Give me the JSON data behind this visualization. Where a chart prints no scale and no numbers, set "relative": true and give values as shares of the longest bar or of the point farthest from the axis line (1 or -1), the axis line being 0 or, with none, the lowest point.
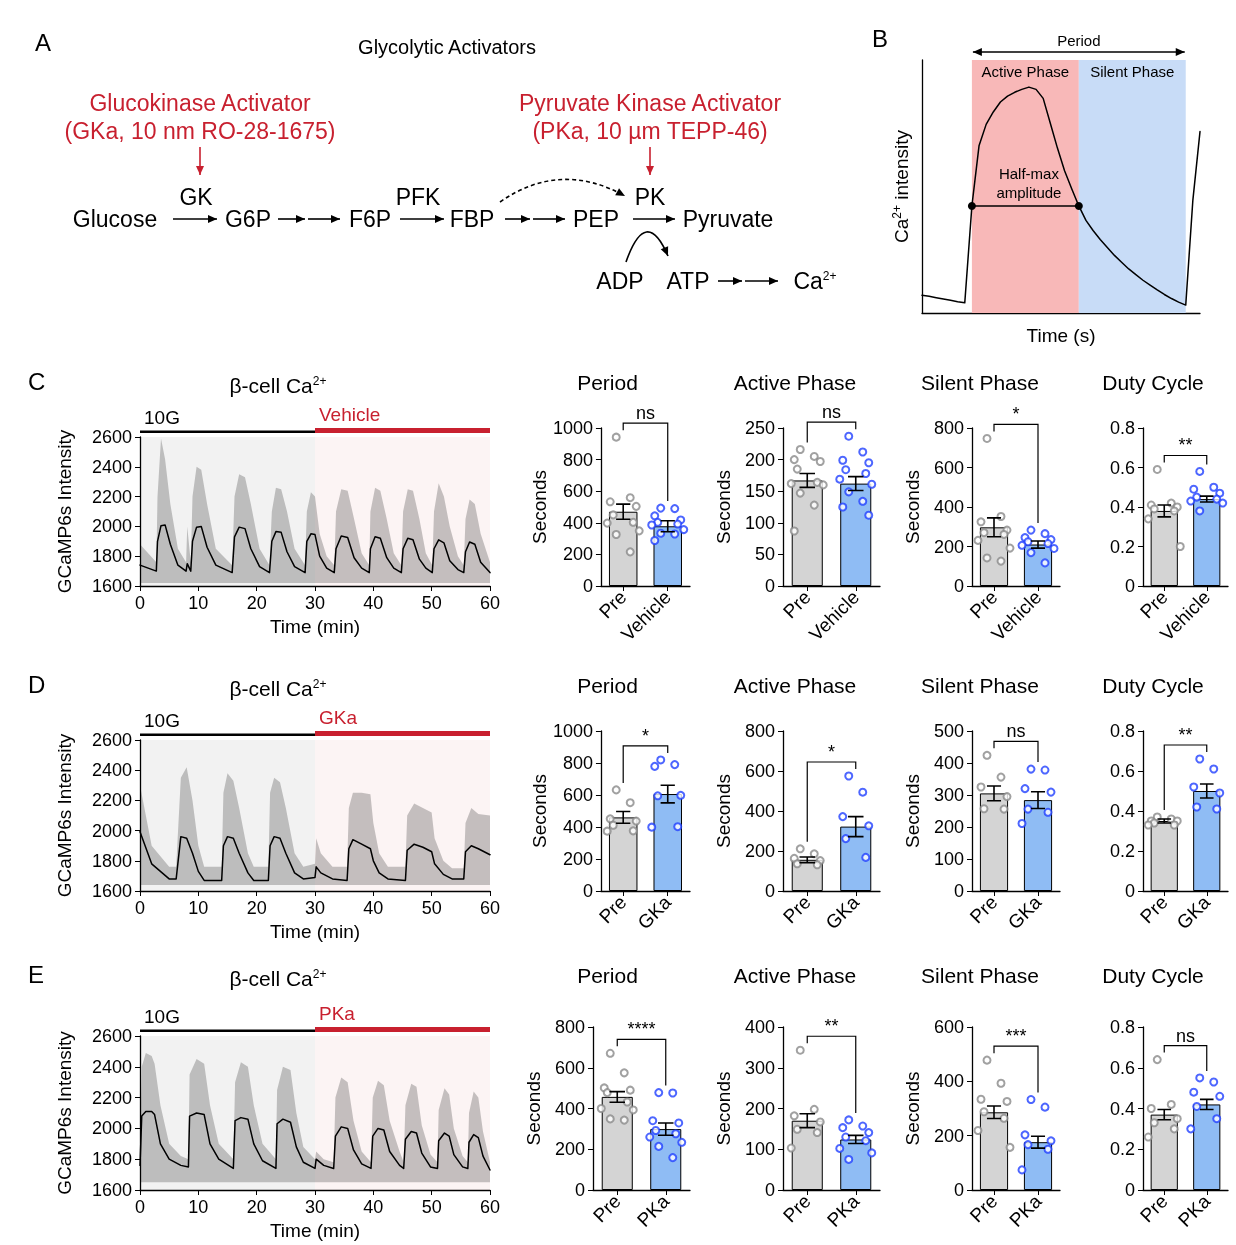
{
  "chart_data": [
    {
      "type": "other",
      "title": "Glycolytic Activators",
      "annotations": [
        "A",
        "Glucokinase Activator",
        "(GKa, 10 nm RO-28-1675)",
        "Pyruvate Kinase Activator",
        "(PKa, 10 µm TEPP-46)",
        "GK",
        "Glucose",
        "G6P",
        "F6P",
        "PFK",
        "FBP",
        "PEP",
        "PK",
        "Pyruvate",
        "ADP",
        "ATP",
        "Ca$^{2+}$"
      ]
    },
    {
      "type": "line",
      "relative": true,
      "xlabel": "Time (s)",
      "ylabel": "Ca$^{2+}$ intensity",
      "annotations": [
        "B",
        "Period",
        "Active Phase",
        "Silent Phase"
      ],
      "ref_lines": [
        {
          "axis": "y",
          "value": 0.474,
          "label": "Half-max\namplitude",
          "color": "#000000"
        }
      ],
      "categories": [
        null,
        null,
        null,
        null,
        null,
        null,
        null,
        null,
        null,
        null,
        null,
        null,
        null,
        null,
        null,
        null,
        null,
        null,
        null,
        null,
        null,
        null,
        null,
        null,
        null,
        null,
        null,
        null,
        null,
        null,
        null,
        null,
        null,
        null,
        null,
        null,
        null,
        null,
        null,
        null
      ],
      "series": [
        {
          "color": "#000000",
          "marker": "none",
          "values": [
            0.079,
            0.074,
            0.068,
            0.062,
            0.056,
            0.05,
            0.045,
            0.474,
            0.74,
            0.835,
            0.89,
            0.934,
            0.96,
            0.977,
            0.99,
            1,
            0.99,
            0.95,
            0.84,
            0.73,
            0.63,
            0.55,
            0.474,
            0.41,
            0.365,
            0.325,
            0.29,
            0.255,
            0.225,
            0.195,
            0.17,
            0.145,
            0.123,
            0.102,
            0.082,
            0.064,
            0.048,
            0.035,
            0.5,
            0.803
          ]
        }
      ]
    },
    {
      "type": "line",
      "title": "β-cell Ca$^{2+}$",
      "xlabel": "Time (min)",
      "ylabel": "GCaMP6s Intensity",
      "xlim": [
        0,
        60
      ],
      "xticks": [
        0,
        10,
        20,
        30,
        40,
        50,
        60
      ],
      "ylim": [
        1600,
        2600
      ],
      "yticks": [
        1600,
        1800,
        2000,
        2200,
        2400,
        2600
      ],
      "annotations": [
        "C"
      ],
      "bands": [
        {
          "axis": "x",
          "from": 0,
          "to": 30,
          "label": "10G",
          "color": "#000000"
        },
        {
          "axis": "x",
          "from": 30,
          "to": 60,
          "label": "Vehicle",
          "color": "#c8202f"
        }
      ],
      "series": [
        {
          "color": "#000000",
          "x": [
            0,
            2.8,
            3.0,
            3.6,
            4.3,
            5.2,
            6.5,
            7.9,
            8.1,
            8.7,
            9.0,
            9.7,
            10.5,
            11.5,
            13,
            15.8,
            16.2,
            17,
            18,
            19,
            20.5,
            22.2,
            22.6,
            23.3,
            24.2,
            25.2,
            26.5,
            28.3,
            28.6,
            29.3,
            30,
            30.8,
            32,
            33.3,
            33.6,
            34.5,
            35.6,
            36.7,
            38,
            39.3,
            39.5,
            40.3,
            41.2,
            42.3,
            43.5,
            44.8,
            45.1,
            45.9,
            46.8,
            47.9,
            49,
            50.1,
            50.4,
            51.2,
            52.1,
            53.1,
            54.5,
            55.5,
            55.8,
            56.5,
            57.4,
            58.4,
            60
          ],
          "values": [
            1740,
            1700,
            1900,
            2005,
            2010,
            1880,
            1740,
            1700,
            1750,
            1700,
            1900,
            1995,
            2000,
            1860,
            1740,
            1690,
            1930,
            1995,
            1985,
            1850,
            1730,
            1690,
            1900,
            1965,
            1960,
            1830,
            1730,
            1690,
            1900,
            1950,
            1945,
            1800,
            1720,
            1690,
            1850,
            1935,
            1925,
            1790,
            1720,
            1690,
            1850,
            1930,
            1920,
            1790,
            1720,
            1690,
            1850,
            1920,
            1910,
            1780,
            1720,
            1690,
            1850,
            1910,
            1890,
            1770,
            1710,
            1690,
            1830,
            1895,
            1880,
            1760,
            1690
          ],
          "upper": [
            1880,
            1760,
            2200,
            2590,
            2450,
            2150,
            1850,
            1760,
            2000,
            1760,
            2200,
            2400,
            2380,
            2150,
            1850,
            1740,
            2200,
            2350,
            2330,
            2150,
            1850,
            1740,
            2100,
            2260,
            2250,
            2100,
            1850,
            1740,
            2100,
            2230,
            2200,
            1950,
            1800,
            1740,
            2100,
            2250,
            2240,
            2050,
            1820,
            1740,
            2100,
            2260,
            2240,
            2050,
            1820,
            1740,
            2100,
            2250,
            2240,
            2050,
            1820,
            1740,
            2100,
            2290,
            2200,
            2000,
            1800,
            1740,
            2050,
            2180,
            2150,
            1950,
            1760
          ],
          "lower": [
            1620,
            1620,
            1620,
            1620,
            1620,
            1620,
            1620,
            1620,
            1620,
            1620,
            1620,
            1620,
            1620,
            1620,
            1620,
            1620,
            1620,
            1620,
            1620,
            1620,
            1620,
            1620,
            1620,
            1620,
            1620,
            1620,
            1620,
            1620,
            1620,
            1620,
            1620,
            1620,
            1620,
            1620,
            1620,
            1620,
            1620,
            1620,
            1620,
            1620,
            1620,
            1620,
            1620,
            1620,
            1620,
            1620,
            1620,
            1620,
            1620,
            1620,
            1620,
            1620,
            1620,
            1620,
            1620,
            1620,
            1620,
            1620,
            1620,
            1620,
            1620,
            1620,
            1620
          ]
        }
      ]
    },
    {
      "type": "bar",
      "title": "Period",
      "ylabel": "Seconds",
      "categories": [
        "Pre",
        "Vehicle"
      ],
      "ylim": [
        0,
        1000
      ],
      "yticks": [
        0,
        200,
        400,
        600,
        800,
        1000
      ],
      "marker": "circle",
      "annotations": [
        "ns"
      ],
      "series": [
        {
          "type": "bar",
          "values": [
            470,
            378
          ],
          "colors": [
            "#d4d4d4",
            "#8fbcf4"
          ],
          "errors": [
            48,
            35
          ]
        },
        {
          "type": "scatter",
          "color": "#8a8a8a",
          "x": [
            "Pre",
            "Pre",
            "Pre",
            "Pre",
            "Pre",
            "Pre",
            "Pre",
            "Pre",
            "Pre",
            "Pre"
          ],
          "values": [
            942,
            559,
            533,
            504,
            450,
            403,
            398,
            349,
            326,
            216
          ]
        },
        {
          "type": "scatter",
          "color": "#2040ff",
          "x": [
            "Vehicle",
            "Vehicle",
            "Vehicle",
            "Vehicle",
            "Vehicle",
            "Vehicle",
            "Vehicle",
            "Vehicle",
            "Vehicle",
            "Vehicle",
            "Vehicle"
          ],
          "values": [
            493,
            490,
            444,
            418,
            403,
            392,
            386,
            357,
            334,
            329,
            288
          ]
        }
      ]
    },
    {
      "type": "bar",
      "title": "Active Phase",
      "ylabel": "Seconds",
      "categories": [
        "Pre",
        "Vehicle"
      ],
      "ylim": [
        0,
        250
      ],
      "yticks": [
        0,
        50,
        100,
        150,
        200,
        250
      ],
      "marker": "circle",
      "annotations": [
        "ns"
      ],
      "series": [
        {
          "type": "bar",
          "values": [
            167,
            162
          ],
          "colors": [
            "#d4d4d4",
            "#8fbcf4"
          ],
          "errors": [
            11,
            11
          ]
        },
        {
          "type": "scatter",
          "color": "#8a8a8a",
          "x": [
            "Pre",
            "Pre",
            "Pre",
            "Pre",
            "Pre",
            "Pre",
            "Pre",
            "Pre",
            "Pre",
            "Pre",
            "Pre"
          ],
          "values": [
            216,
            205,
            200,
            197,
            185,
            164,
            162,
            160,
            147,
            128,
            87
          ]
        },
        {
          "type": "scatter",
          "color": "#2040ff",
          "x": [
            "Vehicle",
            "Vehicle",
            "Vehicle",
            "Vehicle",
            "Vehicle",
            "Vehicle",
            "Vehicle",
            "Vehicle",
            "Vehicle",
            "Vehicle",
            "Vehicle",
            "Vehicle"
          ],
          "values": [
            237,
            212,
            199,
            195,
            184,
            178,
            169,
            161,
            149,
            134,
            125,
            112
          ]
        }
      ]
    },
    {
      "type": "bar",
      "title": "Silent Phase",
      "ylabel": "Seconds",
      "categories": [
        "Pre",
        "Vehicle"
      ],
      "ylim": [
        0,
        800
      ],
      "yticks": [
        0,
        200,
        400,
        600,
        800
      ],
      "marker": "circle",
      "annotations": [
        "*"
      ],
      "series": [
        {
          "type": "bar",
          "values": [
            297,
            210
          ],
          "colors": [
            "#d4d4d4",
            "#8fbcf4"
          ],
          "errors": [
            48,
            18
          ]
        },
        {
          "type": "scatter",
          "color": "#8a8a8a",
          "x": [
            "Pre",
            "Pre",
            "Pre",
            "Pre",
            "Pre",
            "Pre",
            "Pre",
            "Pre",
            "Pre",
            "Pre"
          ],
          "values": [
            747,
            352,
            325,
            283,
            270,
            261,
            231,
            192,
            142,
            126
          ]
        },
        {
          "type": "scatter",
          "color": "#2040ff",
          "x": [
            "Vehicle",
            "Vehicle",
            "Vehicle",
            "Vehicle",
            "Vehicle",
            "Vehicle",
            "Vehicle",
            "Vehicle",
            "Vehicle",
            "Vehicle"
          ],
          "values": [
            283,
            265,
            245,
            235,
            224,
            215,
            206,
            190,
            169,
            117
          ]
        }
      ]
    },
    {
      "type": "bar",
      "title": "Duty Cycle",
      "categories": [
        "Pre",
        "Vehicle"
      ],
      "ylim": [
        0,
        0.8
      ],
      "yticks": [
        0,
        0.2,
        0.4,
        0.6,
        0.8
      ],
      "marker": "circle",
      "annotations": [
        "**"
      ],
      "series": [
        {
          "type": "bar",
          "values": [
            0.38,
            0.44
          ],
          "colors": [
            "#d4d4d4",
            "#8fbcf4"
          ],
          "errors": [
            0.03,
            0.015
          ]
        },
        {
          "type": "scatter",
          "color": "#8a8a8a",
          "x": [
            "Pre",
            "Pre",
            "Pre",
            "Pre",
            "Pre",
            "Pre",
            "Pre",
            "Pre"
          ],
          "values": [
            0.59,
            0.42,
            0.41,
            0.4,
            0.39,
            0.38,
            0.34,
            0.2
          ]
        },
        {
          "type": "scatter",
          "color": "#2040ff",
          "x": [
            "Vehicle",
            "Vehicle",
            "Vehicle",
            "Vehicle",
            "Vehicle",
            "Vehicle",
            "Vehicle",
            "Vehicle",
            "Vehicle"
          ],
          "values": [
            0.58,
            0.5,
            0.49,
            0.47,
            0.45,
            0.44,
            0.43,
            0.42,
            0.38
          ]
        }
      ]
    },
    {
      "type": "line",
      "title": "β-cell Ca$^{2+}$",
      "xlabel": "Time (min)",
      "ylabel": "GCaMP6s Intensity",
      "xlim": [
        0,
        60
      ],
      "xticks": [
        0,
        10,
        20,
        30,
        40,
        50,
        60
      ],
      "ylim": [
        1600,
        2600
      ],
      "yticks": [
        1600,
        1800,
        2000,
        2200,
        2400,
        2600
      ],
      "annotations": [
        "D"
      ],
      "bands": [
        {
          "axis": "x",
          "from": 0,
          "to": 30,
          "label": "10G",
          "color": "#000000"
        },
        {
          "axis": "x",
          "from": 30,
          "to": 60,
          "label": "GKa",
          "color": "#c8202f"
        }
      ],
      "series": [
        {
          "color": "#000000",
          "x": [
            0,
            2,
            5,
            6.2,
            7,
            8,
            9,
            10,
            11,
            14,
            14.3,
            15,
            16,
            17,
            18.5,
            19.5,
            22,
            22.3,
            23,
            24,
            25,
            26.5,
            28,
            30,
            30.2,
            31,
            33,
            35.5,
            35.8,
            36.5,
            38,
            39.5,
            40,
            41,
            42.5,
            45.5,
            45.8,
            47,
            48.5,
            50,
            50.5,
            52,
            53.5,
            55.5,
            55.8,
            56.8,
            58,
            60
          ],
          "values": [
            1993,
            1780,
            1680,
            1680,
            1960,
            1950,
            1850,
            1730,
            1670,
            1670,
            1900,
            1960,
            1950,
            1850,
            1720,
            1670,
            1670,
            1900,
            1960,
            1950,
            1850,
            1720,
            1680,
            1690,
            1760,
            1720,
            1680,
            1670,
            1880,
            1940,
            1910,
            1880,
            1800,
            1720,
            1680,
            1670,
            1870,
            1910,
            1890,
            1860,
            1780,
            1710,
            1680,
            1680,
            1860,
            1900,
            1880,
            1840
          ],
          "upper": [
            2300,
            1900,
            1760,
            1760,
            2350,
            2420,
            2200,
            1900,
            1760,
            1760,
            2250,
            2380,
            2330,
            2150,
            1850,
            1760,
            1760,
            2250,
            2350,
            2320,
            2150,
            1850,
            1760,
            1780,
            1950,
            1850,
            1760,
            1760,
            2150,
            2250,
            2250,
            2240,
            2050,
            1850,
            1760,
            1760,
            2100,
            2180,
            2150,
            2120,
            1950,
            1800,
            1750,
            1750,
            2050,
            2150,
            2110,
            2100
          ],
          "lower": [
            1640,
            1640,
            1640,
            1640,
            1640,
            1640,
            1640,
            1640,
            1640,
            1640,
            1640,
            1640,
            1640,
            1640,
            1640,
            1640,
            1640,
            1640,
            1640,
            1640,
            1640,
            1640,
            1640,
            1640,
            1640,
            1640,
            1640,
            1640,
            1640,
            1640,
            1640,
            1640,
            1640,
            1640,
            1640,
            1640,
            1640,
            1640,
            1640,
            1640,
            1640,
            1640,
            1640,
            1640,
            1640,
            1640,
            1640,
            1640
          ]
        }
      ]
    },
    {
      "type": "bar",
      "title": "Period",
      "ylabel": "Seconds",
      "categories": [
        "Pre",
        "GKa"
      ],
      "ylim": [
        0,
        1000
      ],
      "yticks": [
        0,
        200,
        400,
        600,
        800,
        1000
      ],
      "marker": "circle",
      "annotations": [
        "*"
      ],
      "series": [
        {
          "type": "bar",
          "values": [
            460,
            606
          ],
          "colors": [
            "#d4d4d4",
            "#8fbcf4"
          ],
          "errors": [
            37,
            55
          ]
        },
        {
          "type": "scatter",
          "color": "#8a8a8a",
          "x": [
            "Pre",
            "Pre",
            "Pre",
            "Pre",
            "Pre",
            "Pre",
            "Pre"
          ],
          "values": [
            632,
            552,
            451,
            437,
            411,
            376,
            374
          ]
        },
        {
          "type": "scatter",
          "color": "#2040ff",
          "x": [
            "GKa",
            "GKa",
            "GKa",
            "GKa",
            "GKa",
            "GKa",
            "GKa"
          ],
          "values": [
            819,
            790,
            779,
            598,
            595,
            402,
            399
          ]
        }
      ]
    },
    {
      "type": "bar",
      "title": "Active Phase",
      "ylabel": "Seconds",
      "categories": [
        "Pre",
        "GKa"
      ],
      "ylim": [
        0,
        800
      ],
      "yticks": [
        0,
        200,
        400,
        600,
        800
      ],
      "marker": "circle",
      "annotations": [
        "*"
      ],
      "series": [
        {
          "type": "bar",
          "values": [
            156,
            322
          ],
          "colors": [
            "#d4d4d4",
            "#8fbcf4"
          ],
          "errors": [
            14,
            50
          ]
        },
        {
          "type": "scatter",
          "color": "#8a8a8a",
          "x": [
            "Pre",
            "Pre",
            "Pre",
            "Pre",
            "Pre",
            "Pre"
          ],
          "values": [
            211,
            186,
            163,
            152,
            136,
            131
          ]
        },
        {
          "type": "scatter",
          "color": "#2040ff",
          "x": [
            "GKa",
            "GKa",
            "GKa",
            "GKa",
            "GKa",
            "GKa"
          ],
          "values": [
            575,
            494,
            372,
            326,
            262,
            168
          ]
        }
      ]
    },
    {
      "type": "bar",
      "title": "Silent Phase",
      "ylabel": "Seconds",
      "categories": [
        "Pre",
        "GKa"
      ],
      "ylim": [
        0,
        500
      ],
      "yticks": [
        0,
        100,
        200,
        300,
        400,
        500
      ],
      "marker": "circle",
      "annotations": [
        "ns"
      ],
      "series": [
        {
          "type": "bar",
          "values": [
            305,
            284
          ],
          "colors": [
            "#d4d4d4",
            "#8fbcf4"
          ],
          "errors": [
            23,
            26
          ]
        },
        {
          "type": "scatter",
          "color": "#8a8a8a",
          "x": [
            "Pre",
            "Pre",
            "Pre",
            "Pre",
            "Pre",
            "Pre"
          ],
          "values": [
            424,
            356,
            325,
            295,
            257,
            256
          ]
        },
        {
          "type": "scatter",
          "color": "#2040ff",
          "x": [
            "GKa",
            "GKa",
            "GKa",
            "GKa",
            "GKa",
            "GKa",
            "GKa"
          ],
          "values": [
            381,
            378,
            320,
            309,
            256,
            246,
            211
          ]
        }
      ]
    },
    {
      "type": "bar",
      "title": "Duty Cycle",
      "categories": [
        "Pre",
        "GKa"
      ],
      "ylim": [
        0,
        0.8
      ],
      "yticks": [
        0,
        0.2,
        0.4,
        0.6,
        0.8
      ],
      "marker": "circle",
      "annotations": [
        "**"
      ],
      "series": [
        {
          "type": "bar",
          "values": [
            0.35,
            0.5
          ],
          "colors": [
            "#d4d4d4",
            "#8fbcf4"
          ],
          "errors": [
            0.01,
            0.035
          ]
        },
        {
          "type": "scatter",
          "color": "#8a8a8a",
          "x": [
            "Pre",
            "Pre",
            "Pre",
            "Pre",
            "Pre",
            "Pre",
            "Pre"
          ],
          "values": [
            0.37,
            0.36,
            0.35,
            0.35,
            0.34,
            0.33,
            0.33
          ]
        },
        {
          "type": "scatter",
          "color": "#2040ff",
          "x": [
            "GKa",
            "GKa",
            "GKa",
            "GKa",
            "GKa",
            "GKa"
          ],
          "values": [
            0.66,
            0.61,
            0.52,
            0.49,
            0.42,
            0.41
          ]
        }
      ]
    },
    {
      "type": "line",
      "title": "β-cell Ca$^{2+}$",
      "xlabel": "Time (min)",
      "ylabel": "GCaMP6s Intensity",
      "xlim": [
        0,
        60
      ],
      "xticks": [
        0,
        10,
        20,
        30,
        40,
        50,
        60
      ],
      "ylim": [
        1600,
        2600
      ],
      "yticks": [
        1600,
        1800,
        2000,
        2200,
        2400,
        2600
      ],
      "annotations": [
        "E"
      ],
      "bands": [
        {
          "axis": "x",
          "from": 0,
          "to": 30,
          "label": "10G",
          "color": "#000000"
        },
        {
          "axis": "x",
          "from": 30,
          "to": 60,
          "label": "PKa",
          "color": "#c8202f"
        }
      ],
      "series": [
        {
          "color": "#000000",
          "x": [
            0,
            0.3,
            1,
            2,
            2.5,
            3.5,
            5,
            7,
            8.3,
            8.5,
            9.7,
            11,
            12,
            13.5,
            16,
            16.3,
            17.3,
            18.5,
            19.5,
            21,
            23.3,
            23.5,
            24.5,
            25.8,
            26.8,
            28,
            30,
            30.2,
            31.5,
            33.2,
            33.5,
            34.5,
            35.6,
            36.6,
            38,
            39.6,
            39.9,
            40.8,
            41.8,
            42.8,
            44.5,
            45.2,
            45.5,
            46.5,
            47.4,
            48.3,
            49.8,
            51,
            51.2,
            52.2,
            53,
            53.8,
            55.3,
            56.2,
            56.4,
            57.2,
            58,
            58.8,
            60
          ],
          "values": [
            1760,
            2080,
            2110,
            2110,
            2090,
            1900,
            1800,
            1760,
            1750,
            2080,
            2100,
            2090,
            1900,
            1800,
            1740,
            2050,
            2070,
            2060,
            1900,
            1790,
            1740,
            2030,
            2060,
            2040,
            1880,
            1780,
            1740,
            1800,
            1760,
            1740,
            1950,
            2010,
            2000,
            1860,
            1770,
            1740,
            1950,
            2000,
            1990,
            1850,
            1760,
            1740,
            1930,
            1980,
            1970,
            1840,
            1750,
            1740,
            1920,
            1970,
            1950,
            1830,
            1750,
            1740,
            1910,
            1960,
            1940,
            1820,
            1730
          ],
          "upper": [
            1850,
            2400,
            2490,
            2470,
            2420,
            2150,
            1900,
            1820,
            1800,
            2350,
            2450,
            2420,
            2150,
            1900,
            1800,
            2300,
            2430,
            2400,
            2150,
            1900,
            1800,
            2250,
            2400,
            2380,
            2100,
            1880,
            1800,
            1850,
            1800,
            1780,
            2200,
            2330,
            2300,
            2050,
            1850,
            1780,
            2200,
            2310,
            2280,
            2050,
            1850,
            1780,
            2150,
            2290,
            2270,
            2020,
            1830,
            1780,
            2120,
            2260,
            2220,
            2000,
            1820,
            1780,
            2100,
            2240,
            2200,
            1980,
            1780
          ],
          "lower": [
            1650,
            1650,
            1650,
            1650,
            1650,
            1650,
            1650,
            1650,
            1650,
            1650,
            1650,
            1650,
            1650,
            1650,
            1650,
            1650,
            1650,
            1650,
            1650,
            1650,
            1650,
            1650,
            1650,
            1650,
            1650,
            1650,
            1650,
            1650,
            1650,
            1650,
            1650,
            1650,
            1650,
            1650,
            1650,
            1650,
            1650,
            1650,
            1650,
            1650,
            1650,
            1650,
            1650,
            1650,
            1650,
            1650,
            1650,
            1650,
            1650,
            1650,
            1650,
            1650,
            1650,
            1650,
            1650,
            1650,
            1650,
            1650,
            1650
          ]
        }
      ]
    },
    {
      "type": "bar",
      "title": "Period",
      "ylabel": "Seconds",
      "categories": [
        "Pre",
        "PKa"
      ],
      "ylim": [
        0,
        800
      ],
      "yticks": [
        0,
        200,
        400,
        600,
        800
      ],
      "marker": "circle",
      "annotations": [
        "****"
      ],
      "series": [
        {
          "type": "bar",
          "values": [
            457,
            299
          ],
          "colors": [
            "#d4d4d4",
            "#8fbcf4"
          ],
          "errors": [
            26,
            30
          ]
        },
        {
          "type": "scatter",
          "color": "#8a8a8a",
          "x": [
            "Pre",
            "Pre",
            "Pre",
            "Pre",
            "Pre",
            "Pre",
            "Pre",
            "Pre",
            "Pre",
            "Pre"
          ],
          "values": [
            671,
            575,
            501,
            490,
            478,
            432,
            400,
            393,
            349,
            343
          ]
        },
        {
          "type": "scatter",
          "color": "#2040ff",
          "x": [
            "PKa",
            "PKa",
            "PKa",
            "PKa",
            "PKa",
            "PKa",
            "PKa",
            "PKa",
            "PKa",
            "PKa"
          ],
          "values": [
            478,
            476,
            340,
            329,
            292,
            276,
            260,
            234,
            214,
            159
          ]
        }
      ]
    },
    {
      "type": "bar",
      "title": "Active Phase",
      "ylabel": "Seconds",
      "categories": [
        "Pre",
        "PKa"
      ],
      "ylim": [
        0,
        400
      ],
      "yticks": [
        0,
        100,
        200,
        300,
        400
      ],
      "marker": "circle",
      "annotations": [
        "**"
      ],
      "series": [
        {
          "type": "bar",
          "values": [
            170,
            124
          ],
          "colors": [
            "#d4d4d4",
            "#8fbcf4"
          ],
          "errors": [
            17,
            10
          ]
        },
        {
          "type": "scatter",
          "color": "#8a8a8a",
          "x": [
            "Pre",
            "Pre",
            "Pre",
            "Pre",
            "Pre",
            "Pre",
            "Pre"
          ],
          "values": [
            343,
            198,
            182,
            167,
            149,
            141,
            103
          ]
        },
        {
          "type": "scatter",
          "color": "#2040ff",
          "x": [
            "PKa",
            "PKa",
            "PKa",
            "PKa",
            "PKa",
            "PKa",
            "PKa",
            "PKa",
            "PKa"
          ],
          "values": [
            172,
            157,
            153,
            141,
            130,
            121,
            102,
            91,
            75
          ]
        }
      ]
    },
    {
      "type": "bar",
      "title": "Silent Phase",
      "ylabel": "Seconds",
      "categories": [
        "Pre",
        "PKa"
      ],
      "ylim": [
        0,
        600
      ],
      "yticks": [
        0,
        200,
        400,
        600
      ],
      "marker": "circle",
      "annotations": [
        "***"
      ],
      "series": [
        {
          "type": "bar",
          "values": [
            286,
            176
          ],
          "colors": [
            "#d4d4d4",
            "#8fbcf4"
          ],
          "errors": [
            23,
            22
          ]
        },
        {
          "type": "scatter",
          "color": "#8a8a8a",
          "x": [
            "Pre",
            "Pre",
            "Pre",
            "Pre",
            "Pre",
            "Pre",
            "Pre",
            "Pre"
          ],
          "values": [
            478,
            393,
            334,
            326,
            288,
            264,
            219,
            157
          ]
        },
        {
          "type": "scatter",
          "color": "#2040ff",
          "x": [
            "PKa",
            "PKa",
            "PKa",
            "PKa",
            "PKa",
            "PKa",
            "PKa"
          ],
          "values": [
            333,
            305,
            203,
            181,
            167,
            150,
            74
          ]
        }
      ]
    },
    {
      "type": "bar",
      "title": "Duty Cycle",
      "categories": [
        "Pre",
        "PKa"
      ],
      "ylim": [
        0,
        0.8
      ],
      "yticks": [
        0,
        0.2,
        0.4,
        0.6,
        0.8
      ],
      "marker": "circle",
      "annotations": [
        "ns"
      ],
      "series": [
        {
          "type": "bar",
          "values": [
            0.37,
            0.42
          ],
          "colors": [
            "#d4d4d4",
            "#8fbcf4"
          ],
          "errors": [
            0.025,
            0.025
          ]
        },
        {
          "type": "scatter",
          "color": "#8a8a8a",
          "x": [
            "Pre",
            "Pre",
            "Pre",
            "Pre",
            "Pre",
            "Pre",
            "Pre"
          ],
          "values": [
            0.64,
            0.42,
            0.4,
            0.35,
            0.33,
            0.3,
            0.26
          ]
        },
        {
          "type": "scatter",
          "color": "#2040ff",
          "x": [
            "PKa",
            "PKa",
            "PKa",
            "PKa",
            "PKa",
            "PKa",
            "PKa"
          ],
          "values": [
            0.55,
            0.53,
            0.48,
            0.46,
            0.41,
            0.35,
            0.3
          ]
        }
      ]
    }
  ]
}
